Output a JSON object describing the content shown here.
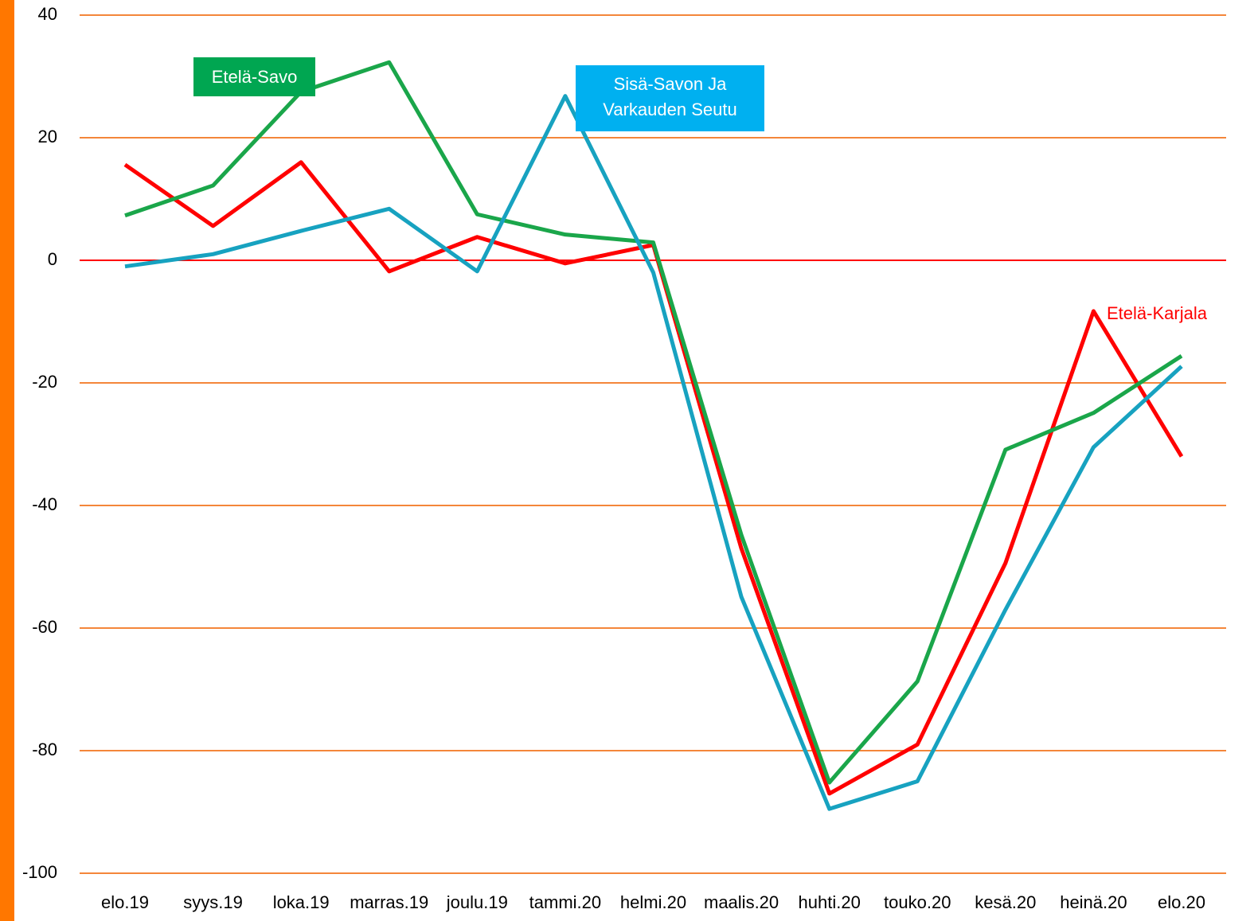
{
  "chart_data": {
    "type": "line",
    "categories": [
      "elo.19",
      "syys.19",
      "loka.19",
      "marras.19",
      "joulu.19",
      "tammi.20",
      "helmi.20",
      "maalis.20",
      "huhti.20",
      "touko.20",
      "kesä.20",
      "heinä.20",
      "elo.20"
    ],
    "series": [
      {
        "name": "Etelä-Karjala",
        "color": "#ff0000",
        "values": [
          15.6,
          5.6,
          16,
          -1.8,
          3.8,
          -0.5,
          2.5,
          -47,
          -87,
          -79,
          -49.4,
          -8.3,
          -32
        ]
      },
      {
        "name": "Etelä-Savo",
        "color": "#1aa64a",
        "values": [
          7.3,
          12.2,
          27.5,
          32.3,
          7.5,
          4.2,
          2.9,
          -44.8,
          -85.2,
          -68.7,
          -30.9,
          -24.9,
          -15.6
        ]
      },
      {
        "name": "Sisä-Savon Ja Varkauden Seutu",
        "color": "#17a2c0",
        "values": [
          -1,
          1,
          4.8,
          8.4,
          -1.8,
          26.8,
          -2,
          -54.9,
          -89.5,
          -85,
          -57,
          -30.5,
          -17.3
        ]
      }
    ],
    "ylim": [
      -100,
      40
    ],
    "yticks": [
      -100,
      -80,
      -60,
      -40,
      -20,
      0,
      20,
      40
    ],
    "grid": true
  }
}
